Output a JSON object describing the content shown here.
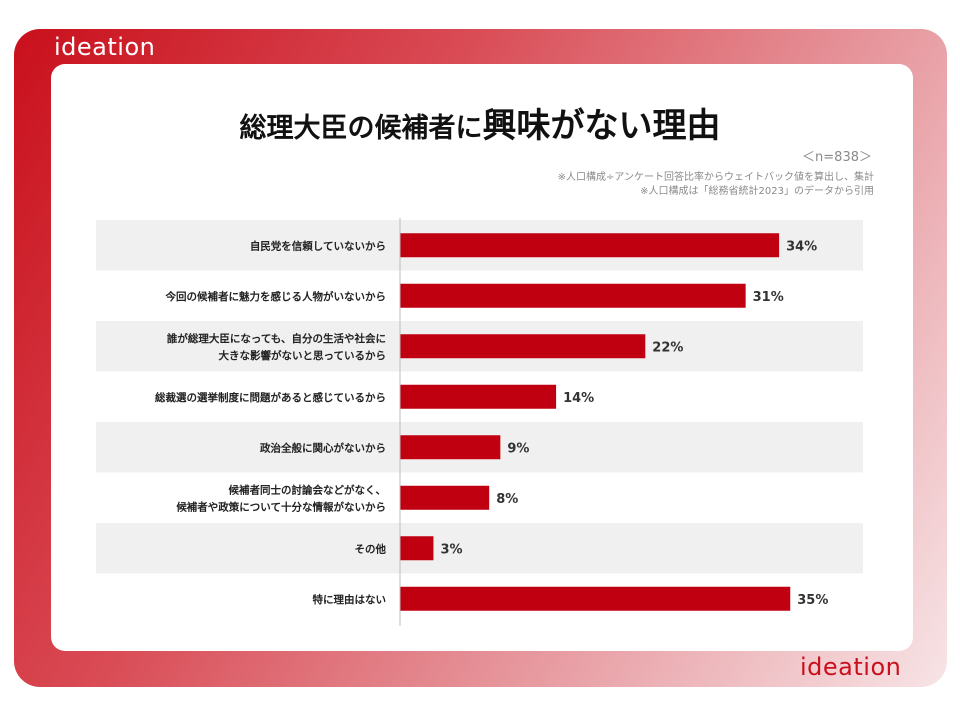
{
  "brand": {
    "logo_text": "ideation",
    "accent_color": "#c9101c"
  },
  "title_part1": "総理大臣の候補者に",
  "title_part2": "興味がない理由",
  "sample_size": "＜n=838＞",
  "notes": [
    "※人口構成÷アンケート回答比率からウェイトバック値を算出し、集計",
    "※人口構成は「総務省統計2023」のデータから引用"
  ],
  "chart_data": {
    "type": "bar",
    "orientation": "horizontal",
    "title": "総理大臣の候補者に興味がない理由",
    "xlabel": "",
    "ylabel": "",
    "xlim": [
      0,
      40
    ],
    "unit": "%",
    "grid": false,
    "categories": [
      [
        "自民党を信頼していないから"
      ],
      [
        "今回の候補者に魅力を感じる人物がいないから"
      ],
      [
        "誰が総理大臣になっても、自分の生活や社会に",
        "大きな影響がないと思っているから"
      ],
      [
        "総裁選の選挙制度に問題があると感じているから"
      ],
      [
        "政治全般に関心がないから"
      ],
      [
        "候補者同士の討論会などがなく、",
        "候補者や政策について十分な情報がないから"
      ],
      [
        "その他"
      ],
      [
        "特に理由はない"
      ]
    ],
    "values": [
      34,
      31,
      22,
      14,
      9,
      8,
      3,
      35
    ],
    "value_labels": [
      "34%",
      "31%",
      "22%",
      "14%",
      "9%",
      "8%",
      "3%",
      "35%"
    ],
    "bar_color": "#c00010",
    "stripe_color": "#f0f0f0"
  }
}
